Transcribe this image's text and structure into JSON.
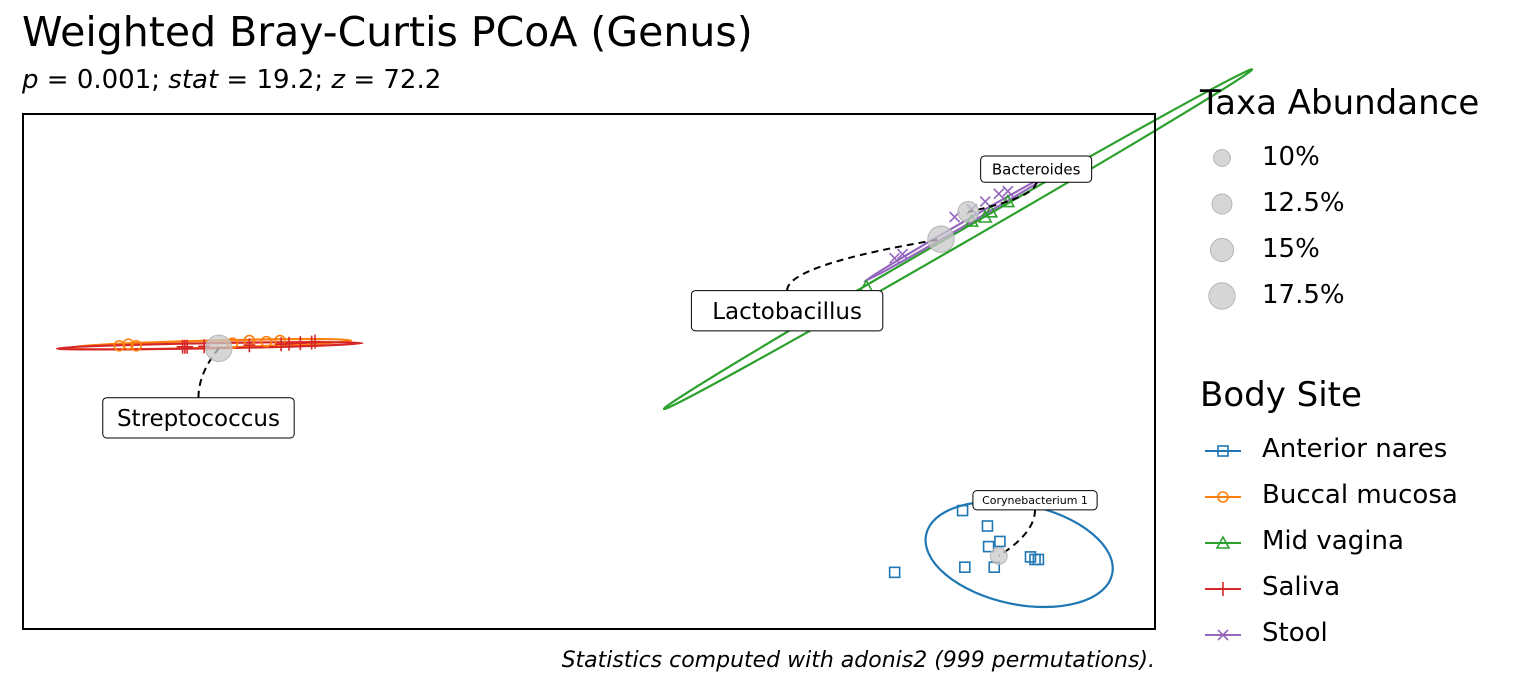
{
  "title": "Weighted Bray-Curtis PCoA (Genus)",
  "subtitle_parts": {
    "p_sym": "p",
    "p_val": " = 0.001; ",
    "stat_sym": "stat",
    "stat_val": " = 19.2; ",
    "z_sym": "z",
    "z_val": " = 72.2"
  },
  "caption": "Statistics computed with adonis2 (999 permutations).",
  "legend_size": {
    "title": "Taxa Abundance",
    "items": [
      {
        "label": "10%",
        "value": 10
      },
      {
        "label": "12.5%",
        "value": 12.5
      },
      {
        "label": "15%",
        "value": 15
      },
      {
        "label": "17.5%",
        "value": 17.5
      }
    ]
  },
  "legend_group": {
    "title": "Body Site",
    "items": [
      {
        "label": "Anterior nares",
        "color": "#1f77b4",
        "marker": "square"
      },
      {
        "label": "Buccal mucosa",
        "color": "#ff7f0e",
        "marker": "circle"
      },
      {
        "label": "Mid vagina",
        "color": "#2ca02c",
        "marker": "triangle"
      },
      {
        "label": "Saliva",
        "color": "#d62728",
        "marker": "plus"
      },
      {
        "label": "Stool",
        "color": "#9467bd",
        "marker": "x"
      }
    ]
  },
  "chart_data": {
    "type": "scatter",
    "xlim": [
      0,
      1
    ],
    "ylim": [
      0,
      1
    ],
    "axes_visible": false,
    "grid": false,
    "series": [
      {
        "name": "Anterior nares",
        "color": "#1f77b4",
        "marker": "square",
        "points": [
          [
            0.77,
            0.11
          ],
          [
            0.83,
            0.23
          ],
          [
            0.852,
            0.2
          ],
          [
            0.853,
            0.16
          ],
          [
            0.858,
            0.12
          ],
          [
            0.863,
            0.17
          ],
          [
            0.89,
            0.14
          ],
          [
            0.894,
            0.135
          ],
          [
            0.897,
            0.135
          ],
          [
            0.832,
            0.12
          ]
        ],
        "ellipse": {
          "cx": 0.88,
          "cy": 0.145,
          "rx": 0.084,
          "ry": 0.097,
          "angle": 12
        }
      },
      {
        "name": "Buccal mucosa",
        "color": "#ff7f0e",
        "marker": "circle",
        "points": [
          [
            0.085,
            0.55
          ],
          [
            0.093,
            0.553
          ],
          [
            0.1,
            0.55
          ],
          [
            0.185,
            0.555
          ],
          [
            0.2,
            0.56
          ],
          [
            0.215,
            0.558
          ],
          [
            0.227,
            0.56
          ]
        ],
        "ellipse": {
          "cx": 0.165,
          "cy": 0.553,
          "rx": 0.125,
          "ry": 0.007,
          "angle": -1.5
        }
      },
      {
        "name": "Mid vagina",
        "color": "#2ca02c",
        "marker": "triangle",
        "points": [
          [
            0.745,
            0.665
          ],
          [
            0.85,
            0.8
          ],
          [
            0.838,
            0.792
          ],
          [
            0.855,
            0.81
          ],
          [
            0.87,
            0.83
          ]
        ],
        "ellipse": {
          "cx": 0.826,
          "cy": 0.757,
          "rx": 0.3,
          "ry": 0.012,
          "angle": -30
        }
      },
      {
        "name": "Saliva",
        "color": "#d62728",
        "marker": "plus",
        "points": [
          [
            0.141,
            0.548
          ],
          [
            0.143,
            0.548
          ],
          [
            0.145,
            0.548
          ],
          [
            0.16,
            0.549
          ],
          [
            0.2,
            0.551
          ],
          [
            0.228,
            0.553
          ],
          [
            0.235,
            0.554
          ],
          [
            0.245,
            0.555
          ],
          [
            0.255,
            0.556
          ],
          [
            0.258,
            0.558
          ]
        ],
        "ellipse": {
          "cx": 0.165,
          "cy": 0.55,
          "rx": 0.135,
          "ry": 0.005,
          "angle": -1
        }
      },
      {
        "name": "Stool",
        "color": "#9467bd",
        "marker": "x",
        "points": [
          [
            0.77,
            0.72
          ],
          [
            0.777,
            0.728
          ],
          [
            0.823,
            0.8
          ],
          [
            0.838,
            0.815
          ],
          [
            0.85,
            0.83
          ],
          [
            0.862,
            0.845
          ],
          [
            0.87,
            0.85
          ]
        ],
        "ellipse": {
          "cx": 0.83,
          "cy": 0.785,
          "rx": 0.1,
          "ry": 0.004,
          "angle": -30
        }
      }
    ],
    "taxa": [
      {
        "label": "Bacteroides",
        "x": 0.835,
        "y": 0.81,
        "abundance": 13,
        "label_x": 0.895,
        "label_y": 0.893,
        "label_size": 15
      },
      {
        "label": "Lactobacillus",
        "x": 0.811,
        "y": 0.757,
        "abundance": 17.5,
        "label_x": 0.675,
        "label_y": 0.618,
        "label_size": 23
      },
      {
        "label": "Streptococcus",
        "x": 0.173,
        "y": 0.545,
        "abundance": 17.5,
        "label_x": 0.155,
        "label_y": 0.41,
        "label_size": 23
      },
      {
        "label": "Corynebacterium 1",
        "x": 0.862,
        "y": 0.142,
        "abundance": 10,
        "label_x": 0.894,
        "label_y": 0.25,
        "label_size": 11
      }
    ]
  }
}
